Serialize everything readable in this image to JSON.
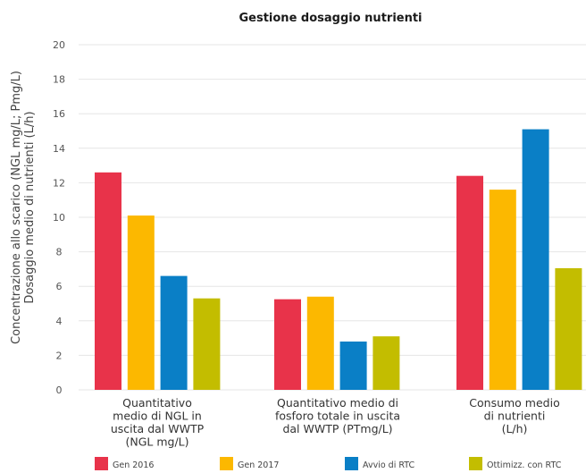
{
  "chart_data": {
    "type": "bar",
    "title": "Gestione dosaggio nutrienti",
    "ylabel": [
      "Concentrazione allo scarico (NGL mg/L; Pmg/L)",
      "Dosaggio medio di nutrienti (L/h)"
    ],
    "xlabel": "",
    "ylim": [
      0,
      20
    ],
    "yticks": [
      0,
      2,
      4,
      6,
      8,
      10,
      12,
      14,
      16,
      18,
      20
    ],
    "grid": true,
    "legend_position": "bottom",
    "categories": [
      [
        "Quantitativo",
        "medio di NGL in",
        "uscita dal WWTP",
        "(NGL mg/L)"
      ],
      [
        "Quantitativo medio di",
        "fosforo totale in uscita",
        "dal WWTP (PTmg/L)"
      ],
      [
        "Consumo medio",
        "di nutrienti",
        "(L/h)"
      ]
    ],
    "series": [
      {
        "name": "Gen 2016",
        "color": "#e8334a",
        "values": [
          12.6,
          5.25,
          12.4
        ]
      },
      {
        "name": "Gen 2017",
        "color": "#fcb800",
        "values": [
          10.1,
          5.4,
          11.6
        ]
      },
      {
        "name": "Avvio di RTC",
        "color": "#0a7fc6",
        "values": [
          6.6,
          2.8,
          15.1
        ]
      },
      {
        "name": "Ottimizz. con RTC",
        "color": "#c3bd00",
        "values": [
          5.3,
          3.1,
          7.05
        ]
      }
    ]
  }
}
